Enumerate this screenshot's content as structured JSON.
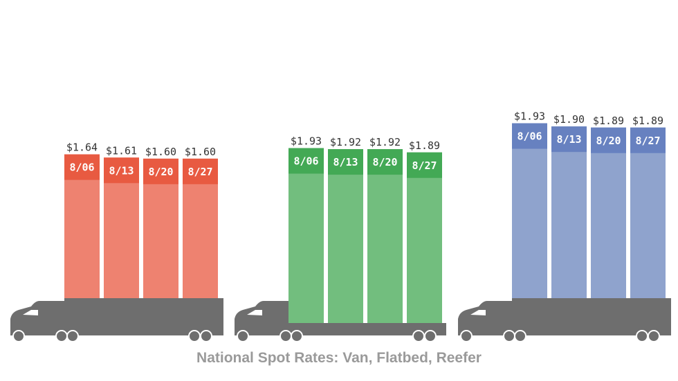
{
  "title": "National Spot Rates: Van, Flatbed, Reefer",
  "chart_data": [
    {
      "type": "bar",
      "categories": [
        "8/06",
        "8/13",
        "8/20",
        "8/27"
      ],
      "values": [
        1.64,
        1.61,
        1.6,
        1.6
      ],
      "labels": [
        "$1.64",
        "$1.61",
        "$1.60",
        "$1.60"
      ],
      "colors": {
        "body": "#ee8270",
        "cap": "#e85a41"
      }
    },
    {
      "type": "bar",
      "categories": [
        "8/06",
        "8/13",
        "8/20",
        "8/27"
      ],
      "values": [
        1.93,
        1.92,
        1.92,
        1.89
      ],
      "labels": [
        "$1.93",
        "$1.92",
        "$1.92",
        "$1.89"
      ],
      "colors": {
        "body": "#72be7e",
        "cap": "#43a955"
      }
    },
    {
      "type": "bar",
      "categories": [
        "8/06",
        "8/13",
        "8/20",
        "8/27"
      ],
      "values": [
        1.93,
        1.9,
        1.89,
        1.89
      ],
      "labels": [
        "$1.93",
        "$1.90",
        "$1.89",
        "$1.89"
      ],
      "colors": {
        "body": "#8fa3cd",
        "cap": "#6781c0"
      }
    }
  ],
  "truck_color": "#6e6e6e",
  "truck_styles": [
    "van",
    "flatbed",
    "van"
  ]
}
